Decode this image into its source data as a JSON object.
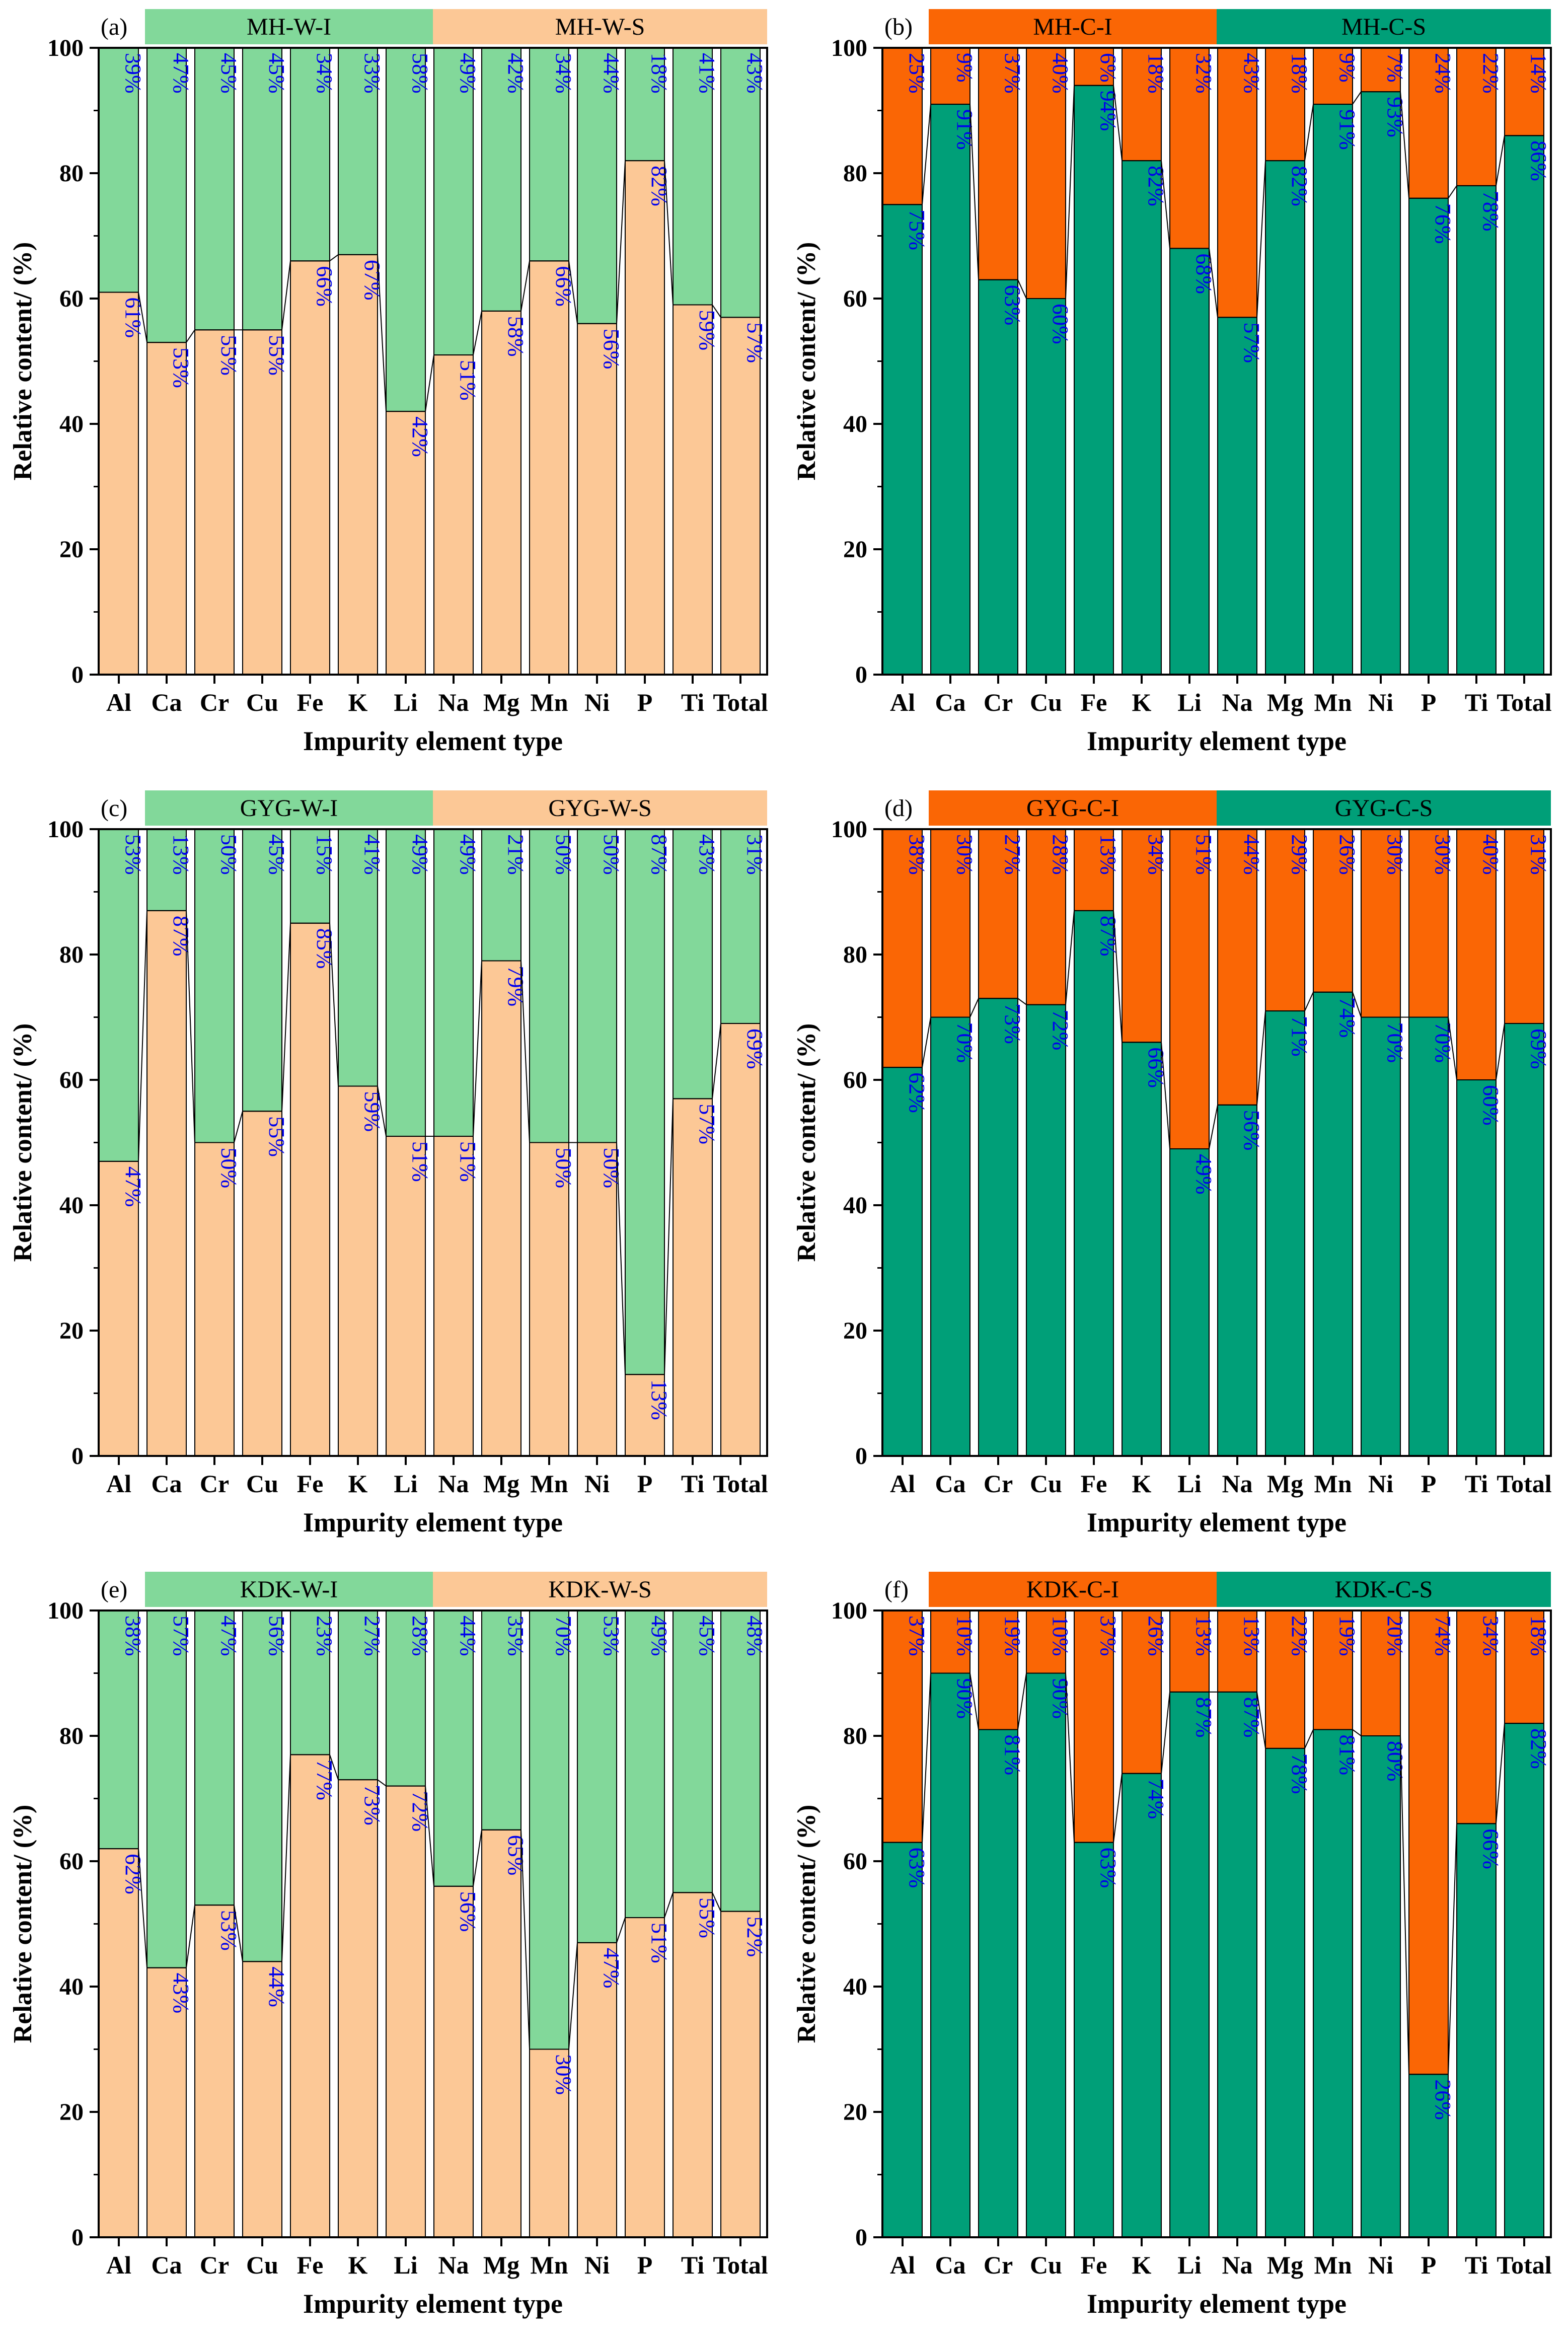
{
  "figure": {
    "x_axis_label": "Impurity element type",
    "y_axis_label": "Relative content/ (%)",
    "categories": [
      "Al",
      "Ca",
      "Cr",
      "Cu",
      "Fe",
      "K",
      "Li",
      "Na",
      "Mg",
      "Mn",
      "Ni",
      "P",
      "Ti",
      "Total"
    ],
    "colors": {
      "light_green": "#82d89a",
      "peach": "#fcc896",
      "orange": "#fa6605",
      "teal": "#009f78",
      "label_blue": "#0000ee"
    }
  },
  "chart_data": [
    {
      "type": "bar",
      "stacked": true,
      "panel": "(a)",
      "categories": [
        "Al",
        "Ca",
        "Cr",
        "Cu",
        "Fe",
        "K",
        "Li",
        "Na",
        "Mg",
        "Mn",
        "Ni",
        "P",
        "Ti",
        "Total"
      ],
      "header": [
        {
          "text": "MH-W-I",
          "color": "#82d89a"
        },
        {
          "text": "MH-W-S",
          "color": "#fcc896"
        }
      ],
      "series": [
        {
          "name": "bottom",
          "color": "#fcc896",
          "values": [
            61,
            53,
            55,
            55,
            66,
            67,
            42,
            51,
            58,
            66,
            56,
            82,
            59,
            57
          ],
          "labels": [
            "61%",
            "53%",
            "55%",
            "55%",
            "66%",
            "67%",
            "42%",
            "51%",
            "58%",
            "66%",
            "56%",
            "82%",
            "59%",
            "57%"
          ]
        },
        {
          "name": "top",
          "color": "#82d89a",
          "values": [
            39,
            47,
            45,
            45,
            34,
            33,
            58,
            49,
            42,
            34,
            44,
            18,
            41,
            43
          ],
          "labels": [
            "39%",
            "47%",
            "45%",
            "45%",
            "34%",
            "33%",
            "58%",
            "49%",
            "42%",
            "34%",
            "44%",
            "18%",
            "41%",
            "43%"
          ]
        }
      ],
      "xlabel": "Impurity element type",
      "ylabel": "Relative content/ (%)",
      "ylim": [
        0,
        100
      ],
      "yticks": [
        0,
        20,
        40,
        60,
        80,
        100
      ]
    },
    {
      "type": "bar",
      "stacked": true,
      "panel": "(b)",
      "categories": [
        "Al",
        "Ca",
        "Cr",
        "Cu",
        "Fe",
        "K",
        "Li",
        "Na",
        "Mg",
        "Mn",
        "Ni",
        "P",
        "Ti",
        "Total"
      ],
      "header": [
        {
          "text": "MH-C-I",
          "color": "#fa6605"
        },
        {
          "text": "MH-C-S",
          "color": "#009f78"
        }
      ],
      "series": [
        {
          "name": "bottom",
          "color": "#009f78",
          "values": [
            75,
            91,
            63,
            60,
            94,
            82,
            68,
            57,
            82,
            91,
            93,
            76,
            78,
            86
          ],
          "labels": [
            "75%",
            "91%",
            "63%",
            "60%",
            "94%",
            "82%",
            "68%",
            "57%",
            "82%",
            "91%",
            "93%",
            "76%",
            "78%",
            "86%"
          ]
        },
        {
          "name": "top",
          "color": "#fa6605",
          "values": [
            25,
            9,
            37,
            40,
            6,
            18,
            32,
            43,
            18,
            9,
            7,
            24,
            22,
            14
          ],
          "labels": [
            "25%",
            "9%",
            "37%",
            "40%",
            "6%",
            "18%",
            "32%",
            "43%",
            "18%",
            "9%",
            "7%",
            "24%",
            "22%",
            "14%"
          ]
        }
      ],
      "xlabel": "Impurity element type",
      "ylabel": "Relative content/ (%)",
      "ylim": [
        0,
        100
      ],
      "yticks": [
        0,
        20,
        40,
        60,
        80,
        100
      ]
    },
    {
      "type": "bar",
      "stacked": true,
      "panel": "(c)",
      "categories": [
        "Al",
        "Ca",
        "Cr",
        "Cu",
        "Fe",
        "K",
        "Li",
        "Na",
        "Mg",
        "Mn",
        "Ni",
        "P",
        "Ti",
        "Total"
      ],
      "header": [
        {
          "text": "GYG-W-I",
          "color": "#82d89a"
        },
        {
          "text": "GYG-W-S",
          "color": "#fcc896"
        }
      ],
      "series": [
        {
          "name": "bottom",
          "color": "#fcc896",
          "values": [
            47,
            87,
            50,
            55,
            85,
            59,
            51,
            51,
            79,
            50,
            50,
            13,
            57,
            69
          ],
          "labels": [
            "47%",
            "87%",
            "50%",
            "55%",
            "85%",
            "59%",
            "51%",
            "51%",
            "79%",
            "50%",
            "50%",
            "13%",
            "57%",
            "69%"
          ]
        },
        {
          "name": "top",
          "color": "#82d89a",
          "values": [
            53,
            13,
            50,
            45,
            15,
            41,
            49,
            49,
            21,
            50,
            50,
            87,
            43,
            31
          ],
          "labels": [
            "53%",
            "13%",
            "50%",
            "45%",
            "15%",
            "41%",
            "49%",
            "49%",
            "21%",
            "50%",
            "50%",
            "87%",
            "43%",
            "31%"
          ]
        }
      ],
      "xlabel": "Impurity element type",
      "ylabel": "Relative content/ (%)",
      "ylim": [
        0,
        100
      ],
      "yticks": [
        0,
        20,
        40,
        60,
        80,
        100
      ]
    },
    {
      "type": "bar",
      "stacked": true,
      "panel": "(d)",
      "categories": [
        "Al",
        "Ca",
        "Cr",
        "Cu",
        "Fe",
        "K",
        "Li",
        "Na",
        "Mg",
        "Mn",
        "Ni",
        "P",
        "Ti",
        "Total"
      ],
      "header": [
        {
          "text": "GYG-C-I",
          "color": "#fa6605"
        },
        {
          "text": "GYG-C-S",
          "color": "#009f78"
        }
      ],
      "series": [
        {
          "name": "bottom",
          "color": "#009f78",
          "values": [
            62,
            70,
            73,
            72,
            87,
            66,
            49,
            56,
            71,
            74,
            70,
            70,
            60,
            69
          ],
          "labels": [
            "62%",
            "70%",
            "73%",
            "72%",
            "87%",
            "66%",
            "49%",
            "56%",
            "71%",
            "74%",
            "70%",
            "70%",
            "60%",
            "69%"
          ]
        },
        {
          "name": "top",
          "color": "#fa6605",
          "values": [
            38,
            30,
            27,
            28,
            13,
            34,
            51,
            44,
            29,
            26,
            30,
            30,
            40,
            31
          ],
          "labels": [
            "38%",
            "30%",
            "27%",
            "28%",
            "13%",
            "34%",
            "51%",
            "44%",
            "29%",
            "26%",
            "30%",
            "30%",
            "40%",
            "31%"
          ]
        }
      ],
      "xlabel": "Impurity element type",
      "ylabel": "Relative content/ (%)",
      "ylim": [
        0,
        100
      ],
      "yticks": [
        0,
        20,
        40,
        60,
        80,
        100
      ]
    },
    {
      "type": "bar",
      "stacked": true,
      "panel": "(e)",
      "categories": [
        "Al",
        "Ca",
        "Cr",
        "Cu",
        "Fe",
        "K",
        "Li",
        "Na",
        "Mg",
        "Mn",
        "Ni",
        "P",
        "Ti",
        "Total"
      ],
      "header": [
        {
          "text": "KDK-W-I",
          "color": "#82d89a"
        },
        {
          "text": "KDK-W-S",
          "color": "#fcc896"
        }
      ],
      "series": [
        {
          "name": "bottom",
          "color": "#fcc896",
          "values": [
            62,
            43,
            53,
            44,
            77,
            73,
            72,
            56,
            65,
            30,
            47,
            51,
            55,
            52
          ],
          "labels": [
            "62%",
            "43%",
            "53%",
            "44%",
            "77%",
            "73%",
            "72%",
            "56%",
            "65%",
            "30%",
            "47%",
            "51%",
            "55%",
            "52%"
          ]
        },
        {
          "name": "top",
          "color": "#82d89a",
          "values": [
            38,
            57,
            47,
            56,
            23,
            27,
            28,
            44,
            35,
            70,
            53,
            49,
            45,
            48
          ],
          "labels": [
            "38%",
            "57%",
            "47%",
            "56%",
            "23%",
            "27%",
            "28%",
            "44%",
            "35%",
            "70%",
            "53%",
            "49%",
            "45%",
            "48%"
          ]
        }
      ],
      "xlabel": "Impurity element type",
      "ylabel": "Relative content/ (%)",
      "ylim": [
        0,
        100
      ],
      "yticks": [
        0,
        20,
        40,
        60,
        80,
        100
      ]
    },
    {
      "type": "bar",
      "stacked": true,
      "panel": "(f)",
      "categories": [
        "Al",
        "Ca",
        "Cr",
        "Cu",
        "Fe",
        "K",
        "Li",
        "Na",
        "Mg",
        "Mn",
        "Ni",
        "P",
        "Ti",
        "Total"
      ],
      "header": [
        {
          "text": "KDK-C-I",
          "color": "#fa6605"
        },
        {
          "text": "KDK-C-S",
          "color": "#009f78"
        }
      ],
      "series": [
        {
          "name": "bottom",
          "color": "#009f78",
          "values": [
            63,
            90,
            81,
            90,
            63,
            74,
            87,
            87,
            78,
            81,
            80,
            26,
            66,
            82
          ],
          "labels": [
            "63%",
            "90%",
            "81%",
            "90%",
            "63%",
            "74%",
            "87%",
            "87%",
            "78%",
            "81%",
            "80%",
            "26%",
            "66%",
            "82%"
          ]
        },
        {
          "name": "top",
          "color": "#fa6605",
          "values": [
            37,
            10,
            19,
            10,
            37,
            26,
            13,
            13,
            22,
            19,
            20,
            74,
            34,
            18
          ],
          "labels": [
            "37%",
            "10%",
            "19%",
            "10%",
            "37%",
            "26%",
            "13%",
            "13%",
            "22%",
            "19%",
            "20%",
            "74%",
            "34%",
            "18%"
          ]
        }
      ],
      "xlabel": "Impurity element type",
      "ylabel": "Relative content/ (%)",
      "ylim": [
        0,
        100
      ],
      "yticks": [
        0,
        20,
        40,
        60,
        80,
        100
      ]
    }
  ]
}
